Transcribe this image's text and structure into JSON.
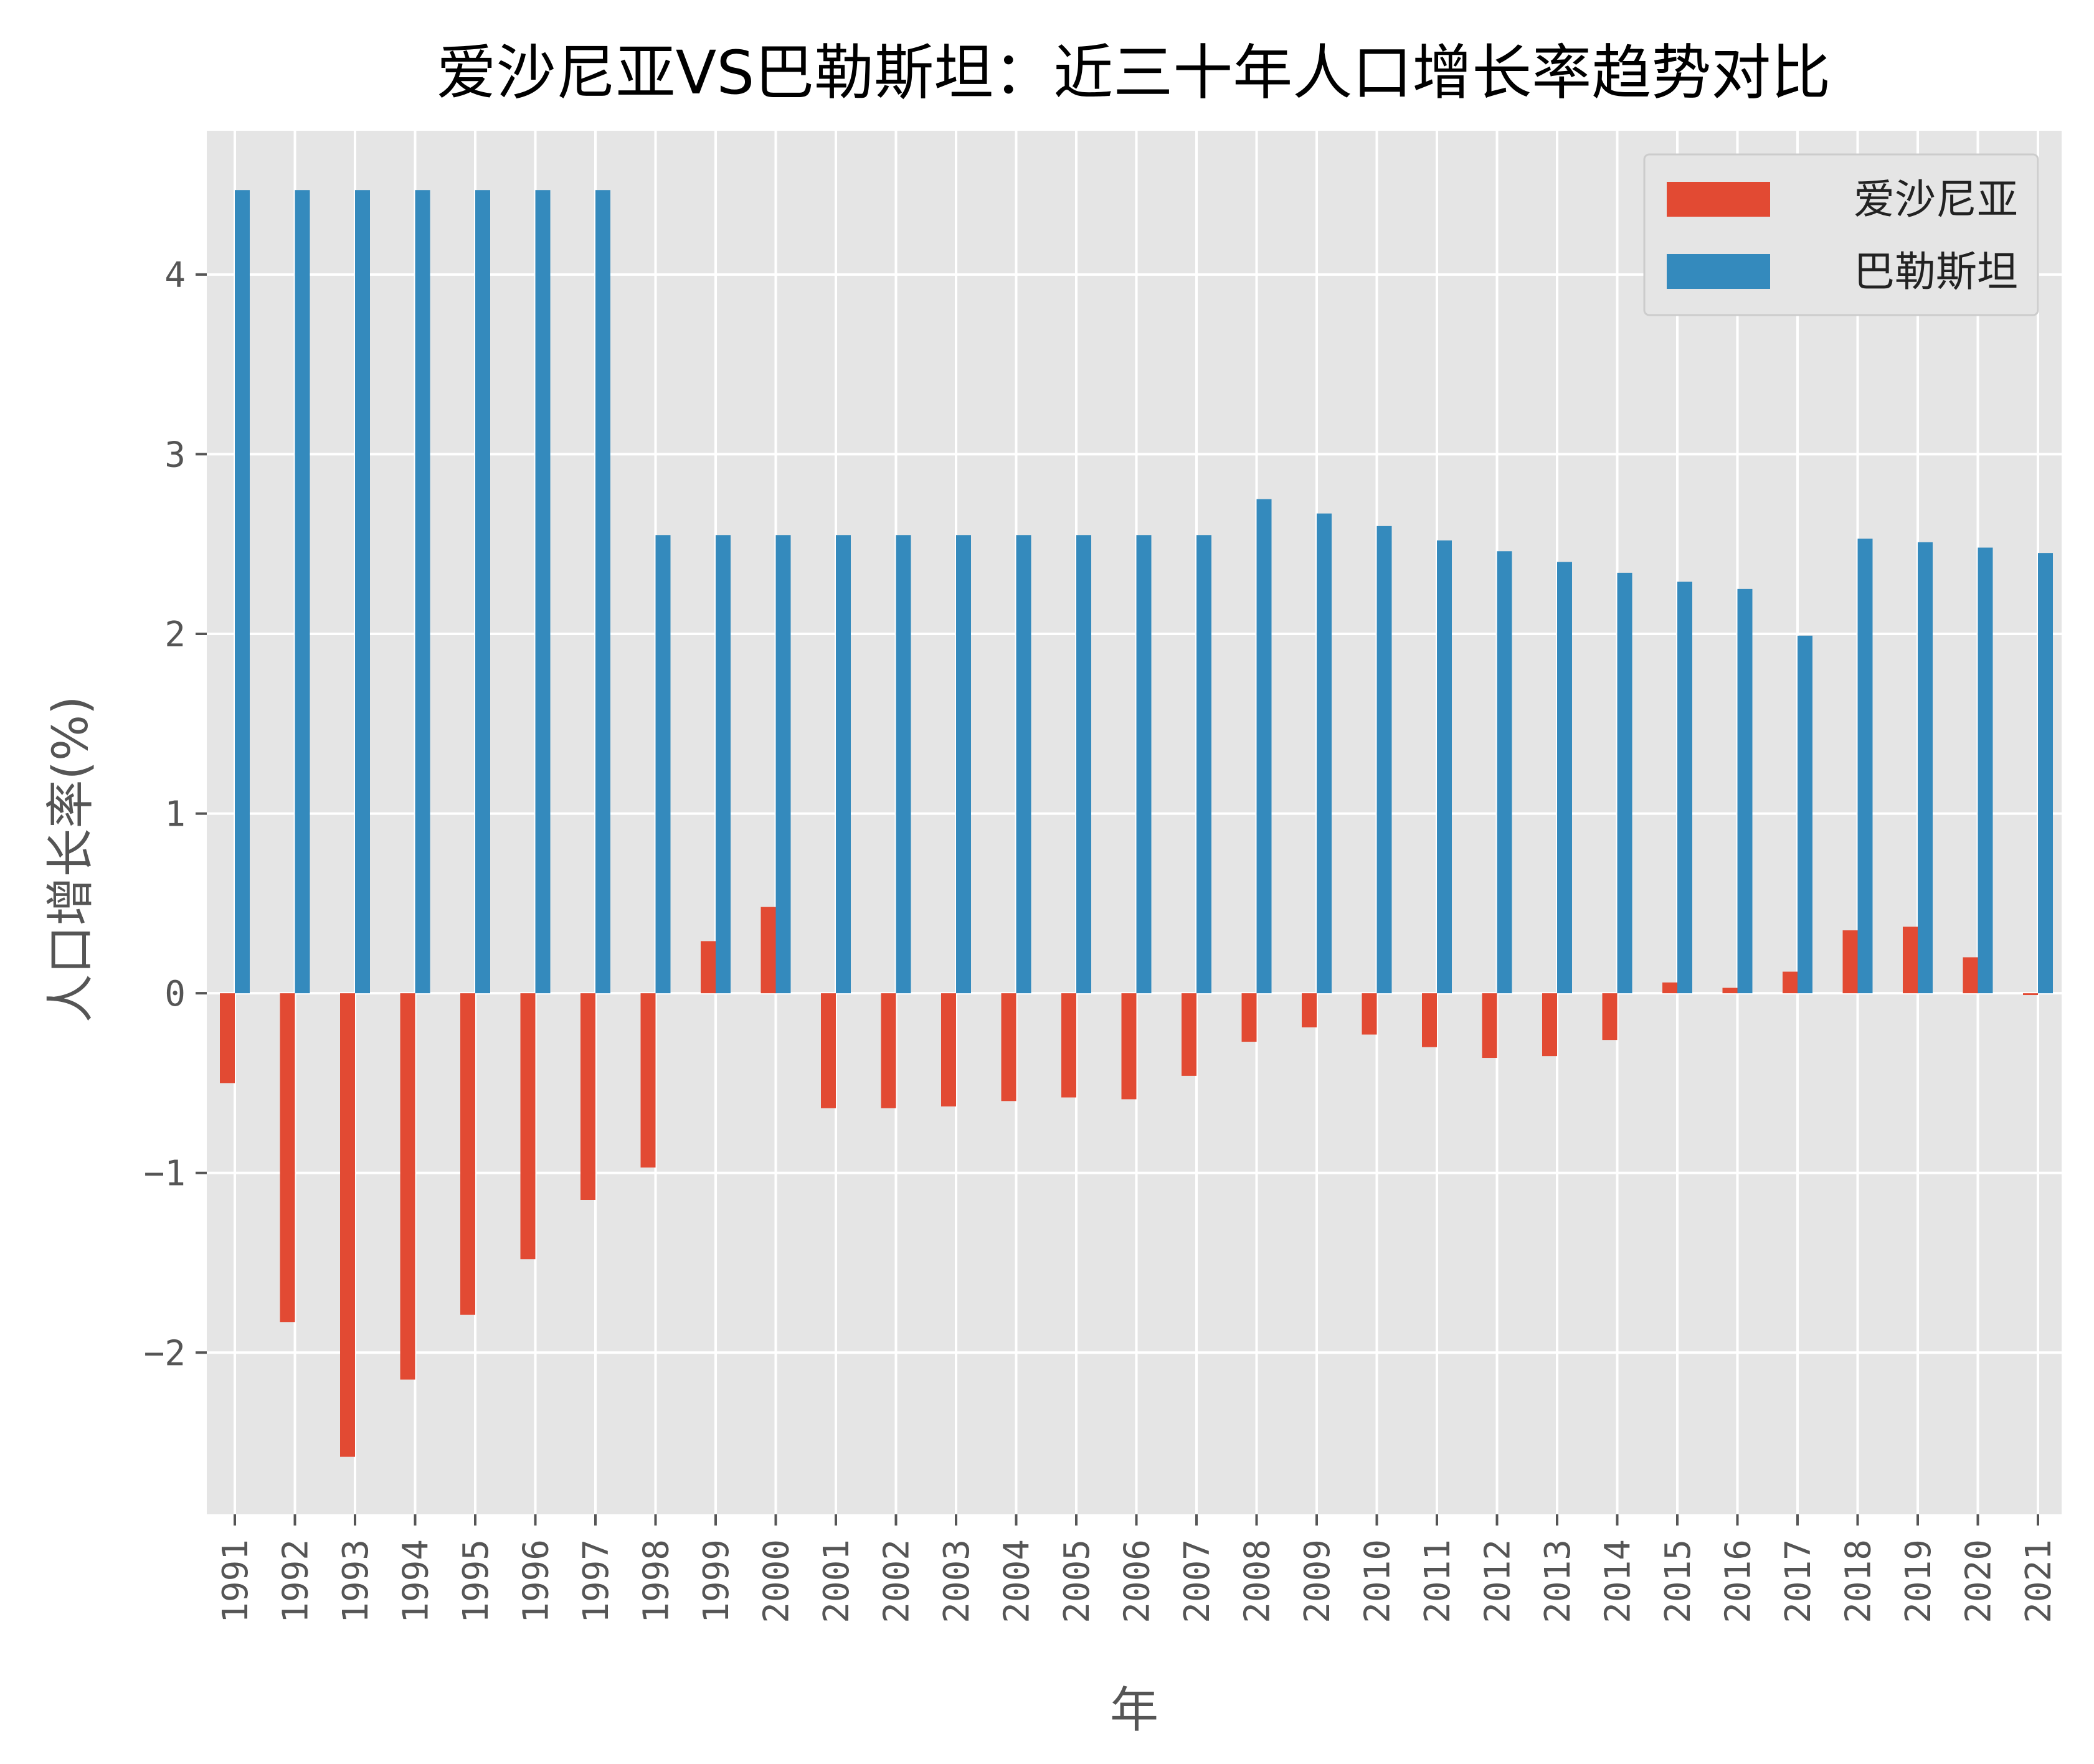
{
  "chart_data": {
    "type": "bar",
    "title": "爱沙尼亚VS巴勒斯坦：近三十年人口增长率趋势对比",
    "xlabel": "年",
    "ylabel": "人口增长率(%)",
    "ylim": [
      -2.9,
      4.8
    ],
    "yticks": [
      -2,
      -1,
      0,
      1,
      2,
      3,
      4
    ],
    "ytick_labels": [
      "−2",
      "−1",
      "0",
      "1",
      "2",
      "3",
      "4"
    ],
    "grid": true,
    "legend_position": "top-right",
    "categories": [
      "1991",
      "1992",
      "1993",
      "1994",
      "1995",
      "1996",
      "1997",
      "1998",
      "1999",
      "2000",
      "2001",
      "2002",
      "2003",
      "2004",
      "2005",
      "2006",
      "2007",
      "2008",
      "2009",
      "2010",
      "2011",
      "2012",
      "2013",
      "2014",
      "2015",
      "2016",
      "2017",
      "2018",
      "2019",
      "2020",
      "2021"
    ],
    "series": [
      {
        "name": "爱沙尼亚",
        "color": "#E24A33",
        "values": [
          -0.5,
          -1.83,
          -2.58,
          -2.15,
          -1.79,
          -1.48,
          -1.15,
          -0.97,
          0.29,
          0.48,
          -0.64,
          -0.64,
          -0.63,
          -0.6,
          -0.58,
          -0.59,
          -0.46,
          -0.27,
          -0.19,
          -0.23,
          -0.3,
          -0.36,
          -0.35,
          -0.26,
          0.06,
          0.03,
          0.12,
          0.35,
          0.37,
          0.2,
          -0.01
        ]
      },
      {
        "name": "巴勒斯坦",
        "color": "#348ABD",
        "values": [
          4.47,
          4.47,
          4.47,
          4.47,
          4.47,
          4.47,
          4.47,
          2.55,
          2.55,
          2.55,
          2.55,
          2.55,
          2.55,
          2.55,
          2.55,
          2.55,
          2.55,
          2.75,
          2.67,
          2.6,
          2.52,
          2.46,
          2.4,
          2.34,
          2.29,
          2.25,
          1.99,
          2.53,
          2.51,
          2.48,
          2.45
        ]
      }
    ]
  }
}
